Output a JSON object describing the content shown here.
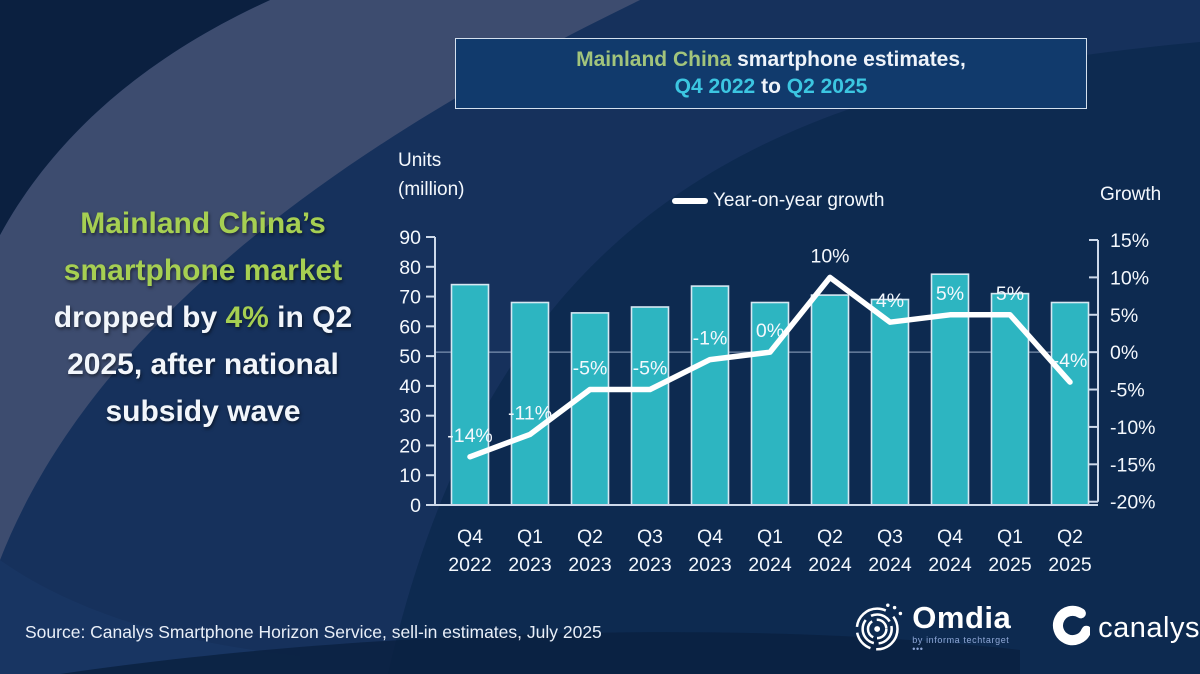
{
  "headline": {
    "green1": "Mainland China’s smartphone market ",
    "white1": "dropped by ",
    "green2": "4%",
    "white2": " in Q2 2025, after national subsidy wave"
  },
  "title_box": {
    "line1_green": "Mainland China",
    "line1_white": " smartphone estimates,",
    "line2_cyan1": "Q4 2022",
    "line2_white": " to ",
    "line2_cyan2": "Q2 2025"
  },
  "chart_data": {
    "type": "bar+line",
    "title": "Mainland China smartphone estimates, Q4 2022 to Q2 2025",
    "categories": [
      "Q4 2022",
      "Q1 2023",
      "Q2 2023",
      "Q3 2023",
      "Q4 2023",
      "Q1 2024",
      "Q2 2024",
      "Q3 2024",
      "Q4 2024",
      "Q1 2025",
      "Q2 2025"
    ],
    "series": [
      {
        "name": "Units (million)",
        "type": "bar",
        "values": [
          74,
          68,
          64.5,
          66.5,
          73.5,
          68,
          70.5,
          69,
          77.5,
          71,
          68
        ]
      },
      {
        "name": "Year-on-year growth",
        "type": "line",
        "values": [
          -14,
          -11,
          -5,
          -5,
          -1,
          0,
          10,
          4,
          5,
          5,
          -4
        ],
        "labels": [
          "-14%",
          "-11%",
          "-5%",
          "-5%",
          "-1%",
          "0%",
          "10%",
          "4%",
          "5%",
          "5%",
          "-4%"
        ]
      }
    ],
    "legend_label": "Year-on-year growth",
    "left_axis": {
      "label_line1": "Units",
      "label_line2": "(million)",
      "min": 0,
      "max": 90,
      "ticks": [
        0,
        10,
        20,
        30,
        40,
        50,
        60,
        70,
        80,
        90
      ]
    },
    "right_axis": {
      "label": "Growth",
      "min": -20,
      "max": 15,
      "unit": "%",
      "ticks": [
        -20,
        -15,
        -10,
        -5,
        0,
        5,
        10,
        15
      ]
    },
    "grid": "horizontal line at 0% only",
    "legend_position": "top-center"
  },
  "source": {
    "text": "Source: Canalys Smartphone Horizon Service, sell-in estimates, July 2025"
  },
  "logos": {
    "omdia": {
      "name": "Omdia",
      "sub": "by informa techtarget •••"
    },
    "canalys": {
      "name": "canalys"
    }
  },
  "colors": {
    "bar": "#2DB5C1",
    "bar_border": "#D6E8F2",
    "line": "#FFFFFF",
    "axis": "#CDD9EA",
    "grid": "#9FB2CC",
    "headline_green": "#A6CF52",
    "title_green": "#A2C47C",
    "cyan": "#3CC6E1",
    "box_bg": "#113A6C",
    "background": "#16315C"
  }
}
